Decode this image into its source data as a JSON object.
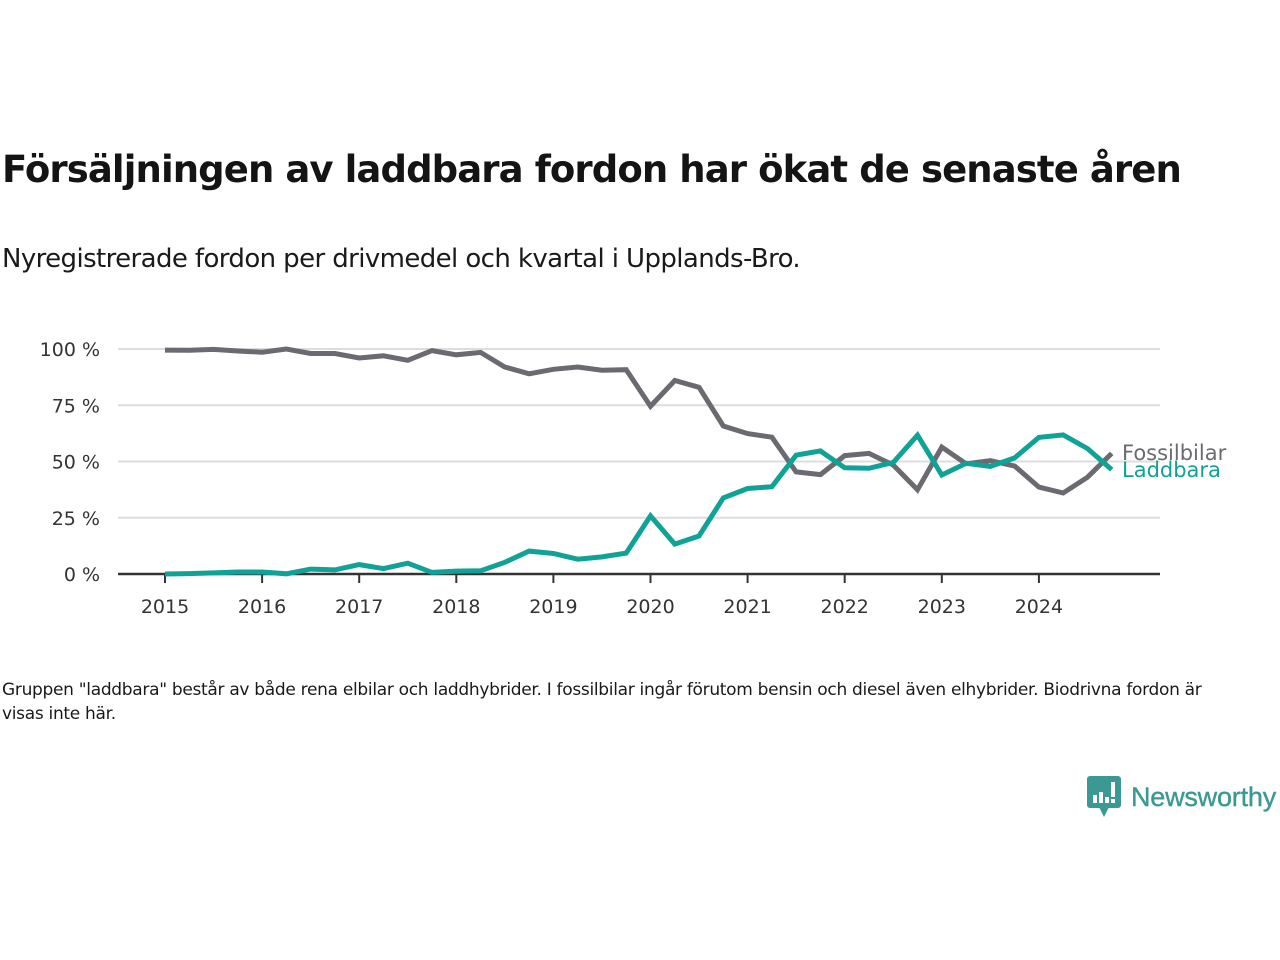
{
  "header": {
    "title": "Försäljningen av laddbara fordon har ökat de senaste åren",
    "subtitle": "Nyregistrerade fordon per drivmedel och kvartal i Upplands-Bro."
  },
  "footnote": "Gruppen \"laddbara\" består av både rena elbilar och laddhybrider. I fossilbilar ingår förutom bensin och diesel även elhybrider. Biodrivna fordon är visas inte här.",
  "brand": {
    "name": "Newsworthy",
    "icon": "newsworthy-chart-bubble-icon",
    "color": "#3a9a93"
  },
  "chart_data": {
    "type": "line",
    "title": "Försäljningen av laddbara fordon har ökat de senaste åren",
    "subtitle": "Nyregistrerade fordon per drivmedel och kvartal i Upplands-Bro.",
    "xlabel": "",
    "ylabel": "",
    "x_unit": "quarter",
    "x_start": "2015-Q1",
    "x": [
      "2015-Q1",
      "2015-Q2",
      "2015-Q3",
      "2015-Q4",
      "2016-Q1",
      "2016-Q2",
      "2016-Q3",
      "2016-Q4",
      "2017-Q1",
      "2017-Q2",
      "2017-Q3",
      "2017-Q4",
      "2018-Q1",
      "2018-Q2",
      "2018-Q3",
      "2018-Q4",
      "2019-Q1",
      "2019-Q2",
      "2019-Q3",
      "2019-Q4",
      "2020-Q1",
      "2020-Q2",
      "2020-Q3",
      "2020-Q4",
      "2021-Q1",
      "2021-Q2",
      "2021-Q3",
      "2021-Q4",
      "2022-Q1",
      "2022-Q2",
      "2022-Q3",
      "2022-Q4",
      "2023-Q1",
      "2023-Q2",
      "2023-Q3",
      "2023-Q4",
      "2024-Q1",
      "2024-Q2",
      "2024-Q3",
      "2024-Q4"
    ],
    "x_ticks": [
      "2015",
      "2016",
      "2017",
      "2018",
      "2019",
      "2020",
      "2021",
      "2022",
      "2023",
      "2024"
    ],
    "y_ticks": [
      0,
      25,
      50,
      75,
      100
    ],
    "y_tick_labels": [
      "0 %",
      "25 %",
      "50 %",
      "75 %",
      "100 %"
    ],
    "ylim": [
      0,
      100
    ],
    "xlim_years": [
      2014.5,
      2025.25
    ],
    "grid": "horizontal",
    "legend": "inline-right-end",
    "series": [
      {
        "name": "Fossilbilar",
        "color": "#6b6a70",
        "values": [
          99.5,
          99.4,
          99.8,
          99.1,
          98.6,
          100,
          98,
          98,
          96,
          97,
          95,
          99.3,
          97.4,
          98.5,
          92,
          89,
          91,
          92,
          90.6,
          90.8,
          74.6,
          86,
          83,
          65.8,
          62.4,
          60.8,
          45.4,
          44.2,
          52.6,
          53.6,
          48.4,
          37.4,
          56.4,
          49,
          50.4,
          48,
          38.6,
          36,
          43,
          53.6
        ]
      },
      {
        "name": "Laddbara",
        "color": "#10a296",
        "values": [
          0,
          0.2,
          0.5,
          0.9,
          0.9,
          0.1,
          2.2,
          1.8,
          4.2,
          2.4,
          4.8,
          0.7,
          1.3,
          1.4,
          5.2,
          10.2,
          9.1,
          6.6,
          7.6,
          9.3,
          25.8,
          13.3,
          16.9,
          33.8,
          38,
          38.8,
          52.8,
          54.7,
          47.2,
          47,
          49.6,
          61.7,
          44,
          49.2,
          47.8,
          51.6,
          60.7,
          61.8,
          55.8,
          46.4
        ]
      }
    ]
  }
}
